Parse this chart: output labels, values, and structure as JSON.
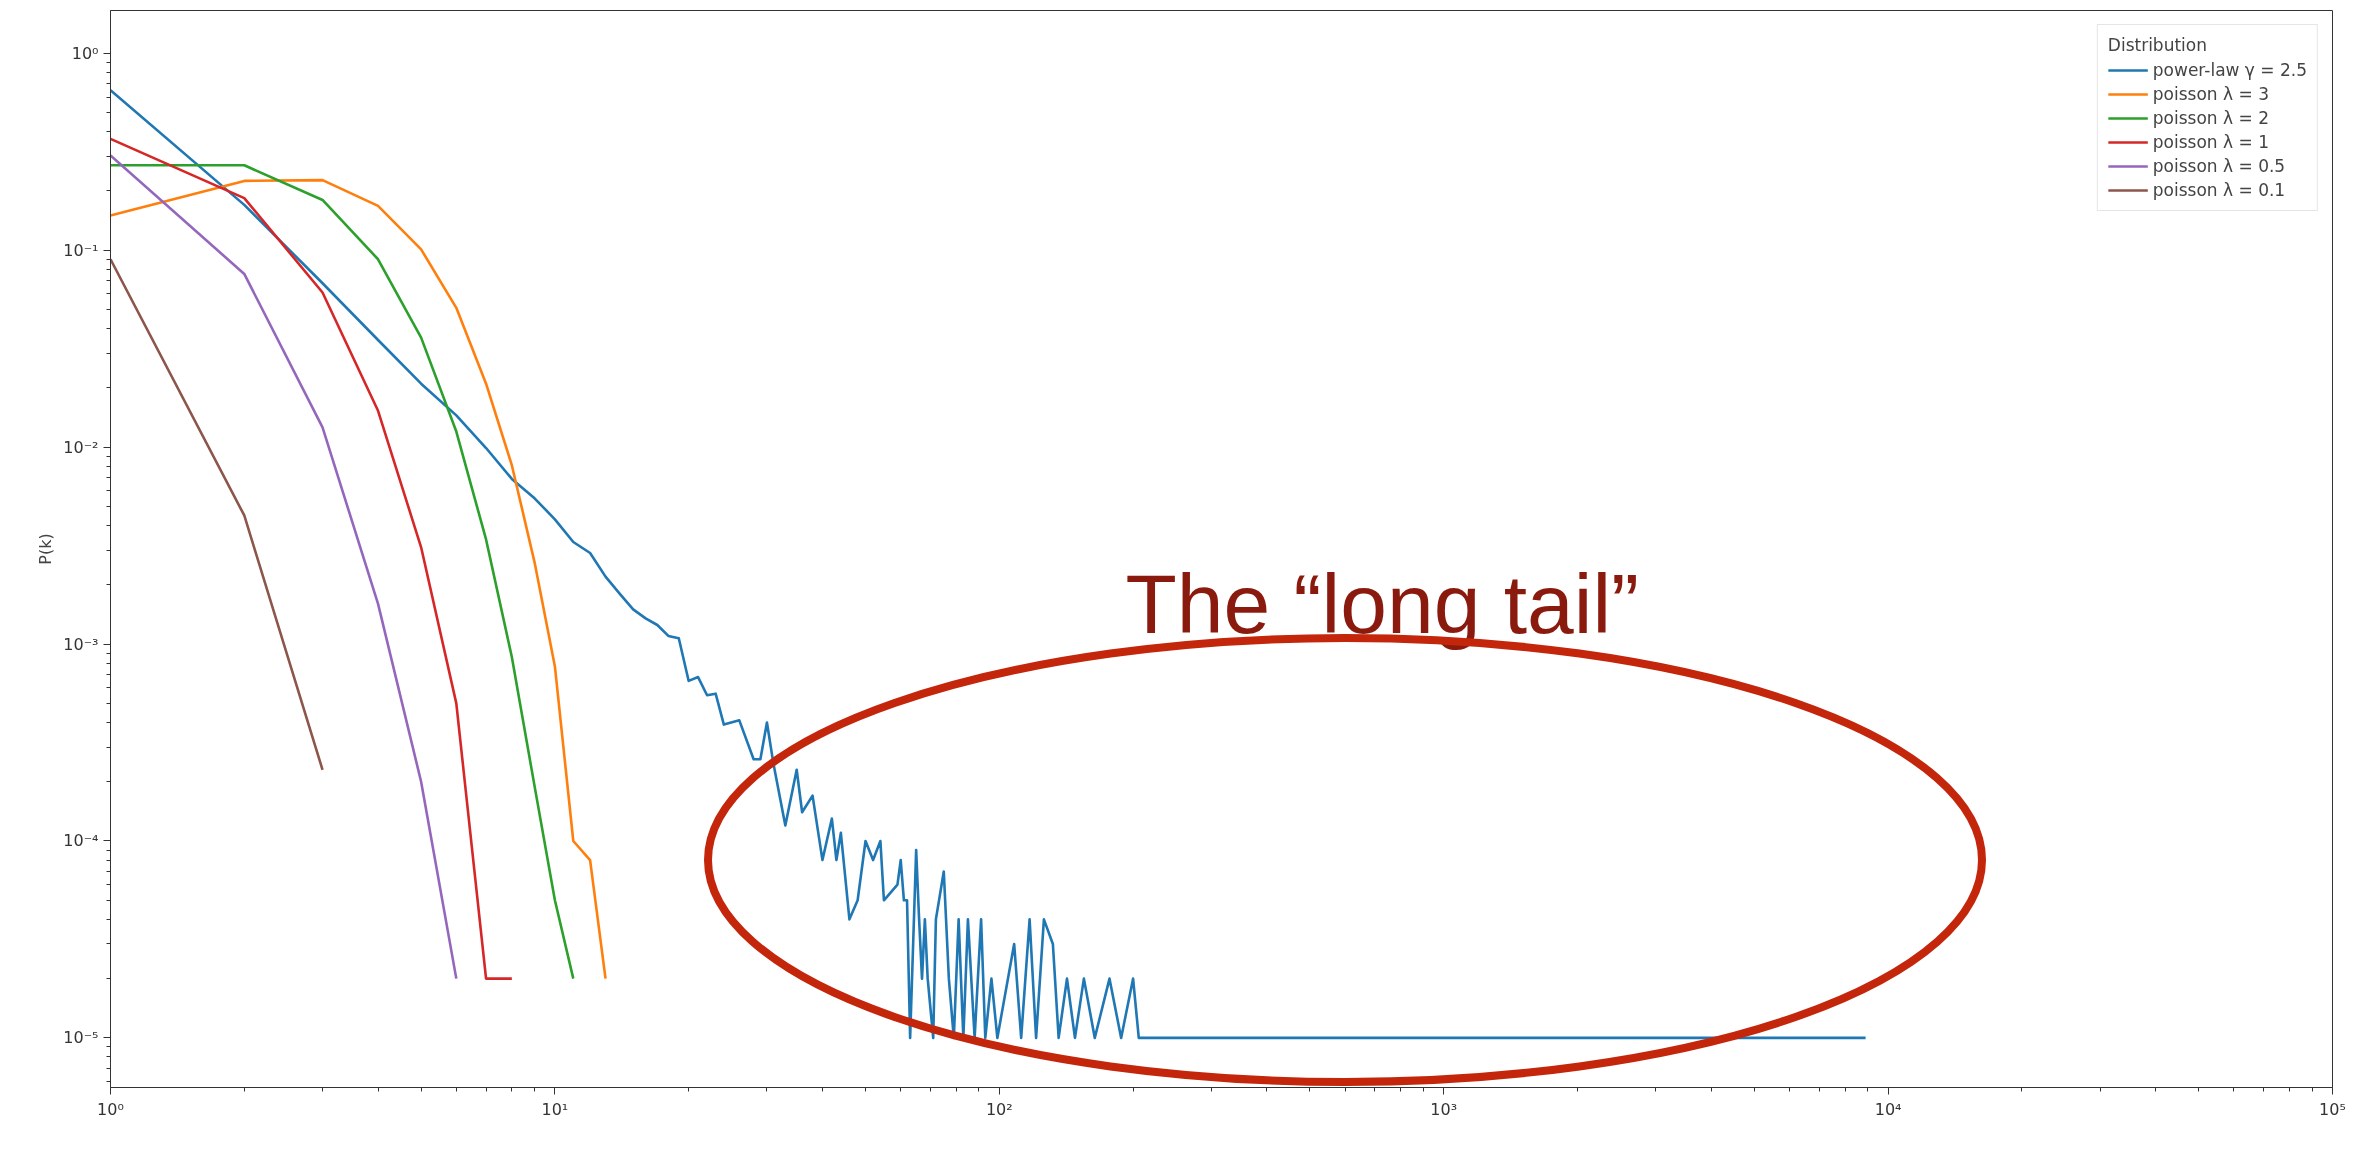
{
  "chart_data": {
    "type": "line",
    "ylabel": "P(k)",
    "legend_title": "Distribution",
    "legend": "top right",
    "grid": false,
    "log": "xy",
    "line_style": "solid",
    "marker": "none",
    "xlim": [
      1,
      100000
    ],
    "ylim": [
      5.6e-06,
      1.65
    ],
    "xticks": [
      {
        "value": 1,
        "label": "10⁰"
      },
      {
        "value": 10,
        "label": "10¹"
      },
      {
        "value": 100,
        "label": "10²"
      },
      {
        "value": 1000,
        "label": "10³"
      },
      {
        "value": 10000,
        "label": "10⁴"
      },
      {
        "value": 100000,
        "label": "10⁵"
      }
    ],
    "yticks": [
      {
        "value": 1e-05,
        "label": "10⁻⁵"
      },
      {
        "value": 0.0001,
        "label": "10⁻⁴"
      },
      {
        "value": 0.001,
        "label": "10⁻³"
      },
      {
        "value": 0.01,
        "label": "10⁻²"
      },
      {
        "value": 0.1,
        "label": "10⁻¹"
      },
      {
        "value": 1,
        "label": "10⁰"
      }
    ],
    "annotations": [
      "The “long tail”"
    ],
    "series": [
      {
        "name": "power-law γ = 2.5",
        "color": "#1f77b4",
        "x": [
          1,
          2,
          3,
          4,
          5,
          6,
          7,
          8,
          9,
          10,
          11,
          12,
          13,
          14,
          15,
          16,
          17,
          18,
          19,
          20,
          21,
          22,
          23,
          24,
          26,
          28,
          29,
          30,
          31,
          33,
          35,
          36,
          38,
          40,
          42,
          43,
          44,
          46,
          48,
          50,
          52,
          54,
          55,
          59,
          60,
          61,
          62,
          63,
          65,
          66,
          67,
          68,
          69,
          71,
          72,
          75,
          77,
          79,
          81,
          83,
          85,
          88,
          91,
          93,
          96,
          99,
          108,
          112,
          117,
          121,
          126,
          132,
          136,
          142,
          148,
          155,
          164,
          177,
          188,
          200,
          206,
          8900
        ],
        "values": [
          0.65,
          0.17,
          0.068,
          0.035,
          0.021,
          0.0145,
          0.0099,
          0.0069,
          0.0055,
          0.0043,
          0.0033,
          0.0029,
          0.0022,
          0.0018,
          0.0015,
          0.00135,
          0.00125,
          0.0011,
          0.00107,
          0.00065,
          0.00068,
          0.00055,
          0.00056,
          0.00039,
          0.00041,
          0.00026,
          0.00026,
          0.0004,
          0.00025,
          0.00012,
          0.00023,
          0.00014,
          0.00017,
          8e-05,
          0.00013,
          8e-05,
          0.00011,
          4e-05,
          5e-05,
          0.0001,
          8e-05,
          0.0001,
          5e-05,
          6e-05,
          8e-05,
          5e-05,
          5e-05,
          1e-05,
          9e-05,
          4e-05,
          2e-05,
          4e-05,
          2e-05,
          1e-05,
          4e-05,
          7e-05,
          2e-05,
          1e-05,
          4e-05,
          1e-05,
          4e-05,
          1e-05,
          4e-05,
          1e-05,
          2e-05,
          1e-05,
          3e-05,
          1e-05,
          4e-05,
          1e-05,
          4e-05,
          3e-05,
          1e-05,
          2e-05,
          1e-05,
          2e-05,
          1e-05,
          2e-05,
          1e-05,
          2e-05,
          1e-05,
          1e-05
        ]
      },
      {
        "name": "poisson λ = 3",
        "color": "#ff7f0e",
        "x": [
          1,
          2,
          3,
          4,
          5,
          6,
          7,
          8,
          9,
          10,
          11,
          12,
          13
        ],
        "values": [
          0.15,
          0.225,
          0.227,
          0.168,
          0.101,
          0.051,
          0.021,
          0.0081,
          0.0026,
          0.00077,
          0.0001,
          8e-05,
          2e-05
        ]
      },
      {
        "name": "poisson λ = 2",
        "color": "#2ca02c",
        "x": [
          1,
          2,
          3,
          4,
          5,
          6,
          7,
          8,
          9,
          10,
          11
        ],
        "values": [
          0.27,
          0.27,
          0.18,
          0.09,
          0.036,
          0.012,
          0.0034,
          0.00086,
          0.00019,
          5e-05,
          2e-05
        ]
      },
      {
        "name": "poisson λ = 1",
        "color": "#d62728",
        "x": [
          1,
          2,
          3,
          4,
          5,
          6,
          7,
          8
        ],
        "values": [
          0.368,
          0.184,
          0.061,
          0.0153,
          0.0031,
          0.0005,
          2e-05,
          2e-05
        ]
      },
      {
        "name": "poisson λ = 0.5",
        "color": "#9467bd",
        "x": [
          1,
          2,
          3,
          4,
          5,
          6
        ],
        "values": [
          0.303,
          0.0758,
          0.0126,
          0.0016,
          0.0002,
          2e-05
        ]
      },
      {
        "name": "poisson λ = 0.1",
        "color": "#8c564b",
        "x": [
          1,
          2,
          3
        ],
        "values": [
          0.09,
          0.0045,
          0.00023
        ]
      }
    ]
  }
}
